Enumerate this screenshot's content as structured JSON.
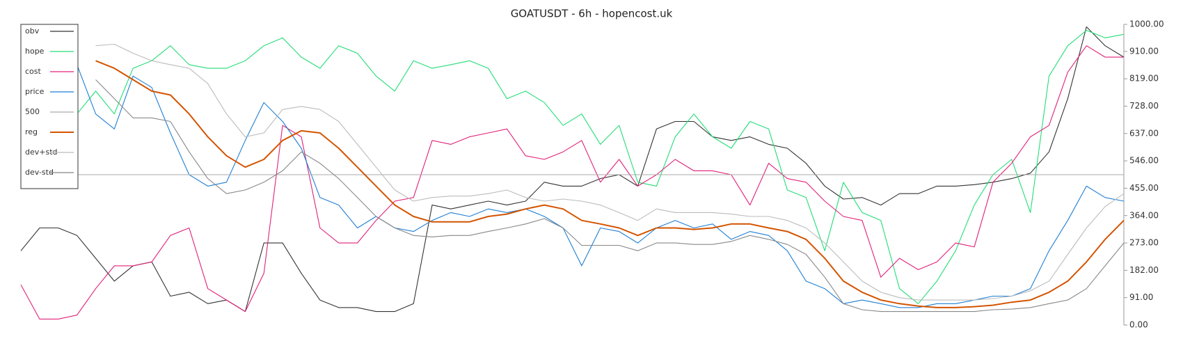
{
  "chart_data": {
    "type": "line",
    "title": "GOATUSDT - 6h - hopencost.uk",
    "ylim": [
      0,
      1000
    ],
    "yticks": [
      {
        "value": 0,
        "label": "0.00"
      },
      {
        "value": 91,
        "label": "91.00"
      },
      {
        "value": 182,
        "label": "182.00"
      },
      {
        "value": 273,
        "label": "273.00"
      },
      {
        "value": 364,
        "label": "364.00"
      },
      {
        "value": 455,
        "label": "455.00"
      },
      {
        "value": 546,
        "label": "546.00"
      },
      {
        "value": 637,
        "label": "637.00"
      },
      {
        "value": 728,
        "label": "728.00"
      },
      {
        "value": 819,
        "label": "819.00"
      },
      {
        "value": 910,
        "label": "910.00"
      },
      {
        "value": 1000,
        "label": "1000.00"
      }
    ],
    "legend": "upper-left",
    "series": [
      {
        "name": "obv",
        "color": "#333333",
        "values": [
          247,
          323,
          323,
          298,
          222,
          146,
          197,
          210,
          96,
          109,
          71,
          83,
          45,
          273,
          273,
          172,
          83,
          58,
          58,
          45,
          45,
          71,
          399,
          386,
          399,
          412,
          399,
          412,
          475,
          462,
          462,
          487,
          500,
          462,
          652,
          677,
          677,
          626,
          614,
          626,
          601,
          588,
          538,
          462,
          419,
          424,
          399,
          437,
          437,
          462,
          462,
          467,
          475,
          487,
          505,
          576,
          753,
          992,
          929,
          891
        ]
      },
      {
        "name": "hope",
        "color": "#22dd77",
        "values": [
          null,
          null,
          null,
          702,
          778,
          702,
          854,
          879,
          929,
          866,
          854,
          854,
          879,
          929,
          955,
          891,
          854,
          929,
          904,
          828,
          778,
          879,
          854,
          866,
          879,
          854,
          753,
          778,
          740,
          664,
          702,
          601,
          664,
          475,
          462,
          626,
          702,
          626,
          588,
          677,
          652,
          449,
          424,
          247,
          475,
          374,
          348,
          121,
          71,
          146,
          247,
          399,
          500,
          551,
          374,
          828,
          929,
          980,
          955,
          967
        ]
      },
      {
        "name": "cost",
        "color": "#e0207a",
        "values": [
          134,
          20,
          20,
          33,
          121,
          197,
          197,
          210,
          298,
          323,
          121,
          83,
          45,
          172,
          664,
          626,
          323,
          273,
          273,
          348,
          412,
          424,
          614,
          601,
          626,
          639,
          652,
          563,
          551,
          576,
          614,
          475,
          551,
          462,
          500,
          551,
          513,
          513,
          500,
          399,
          538,
          487,
          475,
          412,
          361,
          348,
          159,
          222,
          184,
          210,
          273,
          260,
          475,
          538,
          626,
          664,
          841,
          929,
          891,
          891
        ]
      },
      {
        "name": "price",
        "color": "#1f7fd4",
        "values": [
          null,
          null,
          null,
          866,
          702,
          652,
          828,
          790,
          639,
          500,
          462,
          475,
          614,
          740,
          677,
          588,
          424,
          399,
          323,
          361,
          323,
          311,
          348,
          374,
          361,
          386,
          374,
          386,
          361,
          323,
          197,
          323,
          311,
          273,
          323,
          348,
          323,
          336,
          285,
          311,
          298,
          247,
          146,
          121,
          71,
          83,
          71,
          58,
          58,
          71,
          71,
          83,
          96,
          96,
          121,
          247,
          348,
          462,
          424,
          412
        ]
      },
      {
        "name": "500",
        "color": "#aaaaaa",
        "values": [
          500,
          500,
          500,
          500,
          500,
          500,
          500,
          500,
          500,
          500,
          500,
          500,
          500,
          500,
          500,
          500,
          500,
          500,
          500,
          500,
          500,
          500,
          500,
          500,
          500,
          500,
          500,
          500,
          500,
          500,
          500,
          500,
          500,
          500,
          500,
          500,
          500,
          500,
          500,
          500,
          500,
          500,
          500,
          500,
          500,
          500,
          500,
          500,
          500,
          500,
          500,
          500,
          500,
          500,
          500,
          500,
          500,
          500,
          500,
          500
        ]
      },
      {
        "name": "reg",
        "color": "#d35400",
        "values": [
          null,
          null,
          null,
          null,
          879,
          854,
          816,
          778,
          765,
          702,
          626,
          563,
          525,
          551,
          614,
          646,
          639,
          588,
          525,
          462,
          399,
          361,
          343,
          343,
          343,
          361,
          369,
          386,
          399,
          386,
          348,
          336,
          323,
          298,
          323,
          323,
          318,
          323,
          336,
          336,
          323,
          311,
          285,
          222,
          146,
          109,
          83,
          71,
          63,
          58,
          58,
          61,
          66,
          76,
          83,
          109,
          146,
          210,
          285,
          348
        ]
      },
      {
        "name": "dev+std",
        "color": "#bbbbbb",
        "values": [
          null,
          null,
          null,
          null,
          929,
          934,
          904,
          879,
          866,
          854,
          803,
          702,
          626,
          639,
          717,
          727,
          717,
          677,
          601,
          525,
          449,
          412,
          424,
          429,
          429,
          437,
          449,
          424,
          412,
          419,
          412,
          399,
          374,
          348,
          386,
          374,
          374,
          374,
          369,
          361,
          361,
          348,
          323,
          273,
          210,
          146,
          109,
          91,
          83,
          83,
          83,
          83,
          88,
          96,
          114,
          146,
          235,
          323,
          394,
          437
        ]
      },
      {
        "name": "dev-std",
        "color": "#888888",
        "values": [
          null,
          null,
          null,
          null,
          816,
          753,
          689,
          689,
          677,
          576,
          487,
          437,
          449,
          475,
          513,
          576,
          538,
          487,
          424,
          361,
          323,
          298,
          293,
          298,
          298,
          311,
          323,
          336,
          354,
          323,
          265,
          265,
          265,
          247,
          273,
          273,
          268,
          268,
          278,
          298,
          285,
          268,
          235,
          159,
          71,
          51,
          45,
          45,
          45,
          45,
          45,
          45,
          51,
          53,
          58,
          71,
          83,
          121,
          197,
          273
        ]
      }
    ]
  }
}
